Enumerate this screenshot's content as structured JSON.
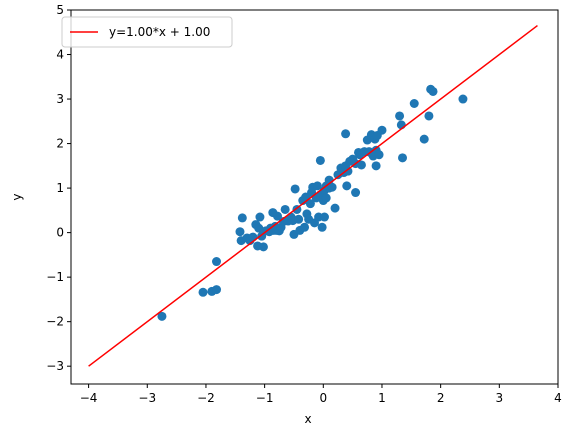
{
  "chart_data": {
    "type": "scatter",
    "title": "",
    "xlabel": "x",
    "ylabel": "y",
    "xlim": [
      -4.3,
      4.0
    ],
    "ylim": [
      -3.4,
      5.0
    ],
    "xticks": [
      -4,
      -3,
      -2,
      -1,
      0,
      1,
      2,
      3,
      4
    ],
    "yticks": [
      -3,
      -2,
      -1,
      0,
      1,
      2,
      3,
      4,
      5
    ],
    "xtick_labels": [
      "−4",
      "−3",
      "−2",
      "−1",
      "0",
      "1",
      "2",
      "3",
      "4"
    ],
    "ytick_labels": [
      "−3",
      "−2",
      "−1",
      "0",
      "1",
      "2",
      "3",
      "4",
      "5"
    ],
    "grid": false,
    "legend_position": "top-left",
    "colors": {
      "points": "#1f77b4",
      "fit_line": "#ff0000"
    },
    "fit_line": {
      "name": "y=1.00*x + 1.00",
      "slope": 1.0,
      "intercept": 1.0,
      "x": [
        -4.0,
        3.65
      ]
    },
    "points": [
      [
        -2.75,
        -1.88
      ],
      [
        -2.05,
        -1.34
      ],
      [
        -1.9,
        -1.32
      ],
      [
        -1.82,
        -1.28
      ],
      [
        -1.82,
        -0.65
      ],
      [
        -1.42,
        0.02
      ],
      [
        -1.4,
        -0.18
      ],
      [
        -1.38,
        0.33
      ],
      [
        -1.3,
        -0.12
      ],
      [
        -1.25,
        -0.18
      ],
      [
        -1.2,
        -0.1
      ],
      [
        -1.15,
        0.18
      ],
      [
        -1.12,
        -0.3
      ],
      [
        -1.1,
        0.1
      ],
      [
        -1.08,
        0.35
      ],
      [
        -1.05,
        -0.08
      ],
      [
        -1.02,
        -0.32
      ],
      [
        -0.98,
        0.04
      ],
      [
        -0.92,
        0.02
      ],
      [
        -0.9,
        0.1
      ],
      [
        -0.86,
        0.45
      ],
      [
        -0.85,
        0.05
      ],
      [
        -0.82,
        0.14
      ],
      [
        -0.8,
        0.05
      ],
      [
        -0.78,
        0.37
      ],
      [
        -0.75,
        0.04
      ],
      [
        -0.72,
        0.12
      ],
      [
        -0.68,
        0.25
      ],
      [
        -0.65,
        0.52
      ],
      [
        -0.6,
        0.26
      ],
      [
        -0.55,
        0.35
      ],
      [
        -0.52,
        0.27
      ],
      [
        -0.5,
        -0.04
      ],
      [
        -0.48,
        0.98
      ],
      [
        -0.45,
        0.52
      ],
      [
        -0.42,
        0.3
      ],
      [
        -0.4,
        0.05
      ],
      [
        -0.35,
        0.72
      ],
      [
        -0.32,
        0.12
      ],
      [
        -0.3,
        0.8
      ],
      [
        -0.28,
        0.42
      ],
      [
        -0.25,
        0.3
      ],
      [
        -0.22,
        0.65
      ],
      [
        -0.2,
        0.9
      ],
      [
        -0.18,
        1.02
      ],
      [
        -0.15,
        0.22
      ],
      [
        -0.12,
        0.78
      ],
      [
        -0.1,
        1.05
      ],
      [
        -0.08,
        0.35
      ],
      [
        -0.05,
        0.85
      ],
      [
        -0.05,
        1.62
      ],
      [
        -0.02,
        0.12
      ],
      [
        0.0,
        0.72
      ],
      [
        0.02,
        0.95
      ],
      [
        0.02,
        0.35
      ],
      [
        0.05,
        1.05
      ],
      [
        0.05,
        0.78
      ],
      [
        0.1,
        1.0
      ],
      [
        0.1,
        1.18
      ],
      [
        0.15,
        1.02
      ],
      [
        0.2,
        0.55
      ],
      [
        0.25,
        1.3
      ],
      [
        0.3,
        1.45
      ],
      [
        0.35,
        1.35
      ],
      [
        0.38,
        1.5
      ],
      [
        0.38,
        2.22
      ],
      [
        0.4,
        1.05
      ],
      [
        0.42,
        1.38
      ],
      [
        0.45,
        1.6
      ],
      [
        0.5,
        1.65
      ],
      [
        0.55,
        1.55
      ],
      [
        0.55,
        0.9
      ],
      [
        0.6,
        1.8
      ],
      [
        0.62,
        1.75
      ],
      [
        0.65,
        1.52
      ],
      [
        0.7,
        1.82
      ],
      [
        0.75,
        2.08
      ],
      [
        0.78,
        1.82
      ],
      [
        0.8,
        1.8
      ],
      [
        0.82,
        2.2
      ],
      [
        0.85,
        1.72
      ],
      [
        0.88,
        2.1
      ],
      [
        0.9,
        1.85
      ],
      [
        0.9,
        1.5
      ],
      [
        0.92,
        2.18
      ],
      [
        0.95,
        1.75
      ],
      [
        1.0,
        2.3
      ],
      [
        1.3,
        2.62
      ],
      [
        1.33,
        2.42
      ],
      [
        1.35,
        1.68
      ],
      [
        1.55,
        2.9
      ],
      [
        1.72,
        2.1
      ],
      [
        1.8,
        2.62
      ],
      [
        1.83,
        3.22
      ],
      [
        1.87,
        3.17
      ],
      [
        2.38,
        3.0
      ]
    ]
  }
}
